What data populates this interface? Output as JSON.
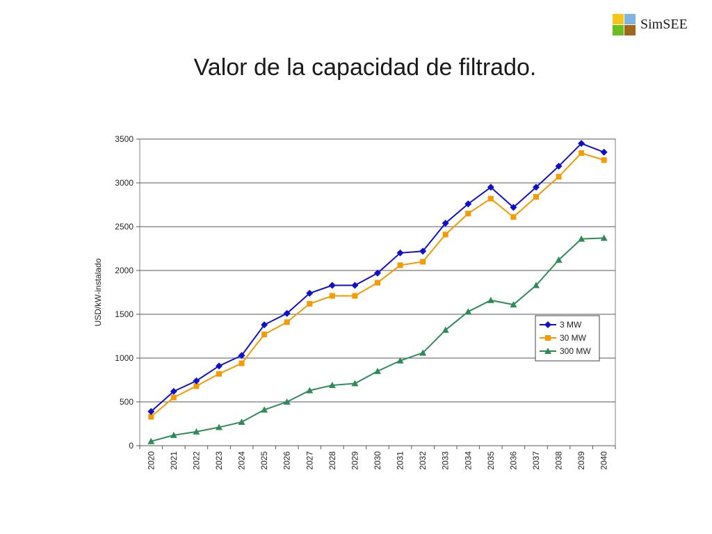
{
  "logo": {
    "text": "SimSEE",
    "colors": [
      "#f5c518",
      "#7fb3e0",
      "#6abf1e",
      "#a0661b"
    ]
  },
  "slide_title": "Valor de la capacidad de filtrado.",
  "chart_data": {
    "type": "line",
    "title": "",
    "xlabel": "",
    "ylabel": "USD/kW-instalado",
    "ylim": [
      0,
      3500
    ],
    "yticks": [
      0,
      500,
      1000,
      1500,
      2000,
      2500,
      3000,
      3500
    ],
    "grid": "horizontal",
    "legend_position": "right",
    "categories": [
      "2020",
      "2021",
      "2022",
      "2023",
      "2024",
      "2025",
      "2026",
      "2027",
      "2028",
      "2029",
      "2030",
      "2031",
      "2032",
      "2033",
      "2034",
      "2035",
      "2036",
      "2037",
      "2038",
      "2039",
      "2040"
    ],
    "series": [
      {
        "name": "3 MW",
        "color": "#1010cc",
        "marker": "diamond",
        "values": [
          390,
          620,
          740,
          910,
          1030,
          1380,
          1510,
          1740,
          1830,
          1830,
          1970,
          2200,
          2220,
          2540,
          2760,
          2950,
          2720,
          2950,
          3190,
          3450,
          3350
        ]
      },
      {
        "name": "30 MW",
        "color": "#f59a00",
        "marker": "square",
        "values": [
          330,
          550,
          680,
          820,
          940,
          1270,
          1410,
          1620,
          1710,
          1710,
          1860,
          2060,
          2100,
          2410,
          2650,
          2820,
          2610,
          2840,
          3070,
          3340,
          3260
        ]
      },
      {
        "name": "300 MW",
        "color": "#2e8b57",
        "marker": "triangle",
        "values": [
          50,
          120,
          160,
          210,
          270,
          410,
          500,
          630,
          690,
          710,
          850,
          970,
          1060,
          1320,
          1530,
          1660,
          1610,
          1830,
          2120,
          2360,
          2370
        ]
      }
    ]
  }
}
